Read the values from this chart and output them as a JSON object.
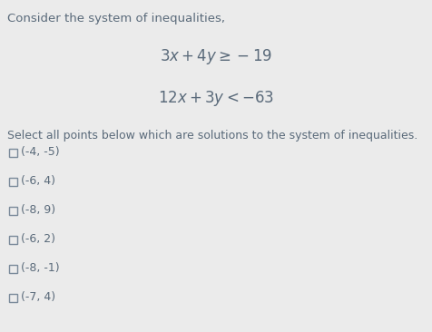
{
  "background_color": "#ebebeb",
  "intro_text": "Consider the system of inequalities,",
  "inequality1": "$3x + 4y \\geq -19$",
  "inequality2": "$12x + 3y < -63$",
  "select_text": "Select all points below which are solutions to the system of inequalities.",
  "points": [
    "(-4, -5)",
    "(-6, 4)",
    "(-8, 9)",
    "(-6, 2)",
    "(-8, -1)",
    "(-7, 4)"
  ],
  "intro_fontsize": 9.5,
  "ineq_fontsize": 12,
  "select_fontsize": 9.0,
  "point_fontsize": 9.0,
  "text_color": "#5a6a7a",
  "checkbox_color": "#7a8a9a"
}
